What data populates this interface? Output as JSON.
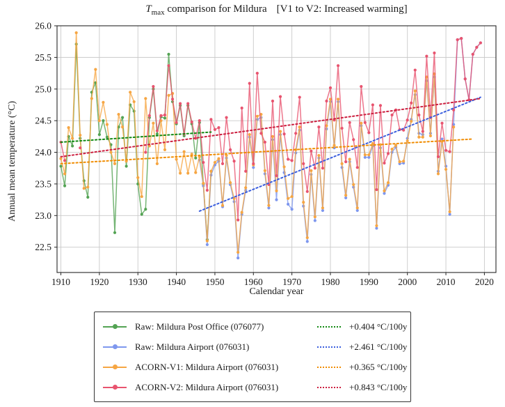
{
  "title": {
    "t": "T",
    "sub": "max",
    "rest": " comparison for Mildura",
    "bracket": "[V1 to V2: Increased warming]"
  },
  "chart_data": {
    "type": "line",
    "title": "T_max comparison for Mildura  [V1 to V2: Increased warming]",
    "xlabel": "Calendar year",
    "ylabel": "Annual mean temperature (°C)",
    "xlim": [
      1909,
      2023
    ],
    "ylim": [
      22.1,
      26.0
    ],
    "xticks": [
      1910,
      1920,
      1930,
      1940,
      1950,
      1960,
      1970,
      1980,
      1990,
      2000,
      2010,
      2020
    ],
    "yticks": [
      22.5,
      23.0,
      23.5,
      24.0,
      24.5,
      25.0,
      25.5,
      26.0
    ],
    "grid": true,
    "legend_position": "below",
    "series": [
      {
        "name": "Raw: Mildura Post Office (076077)",
        "color": "#53a353",
        "start": 1910,
        "values": [
          23.78,
          23.47,
          24.25,
          24.1,
          25.71,
          24.22,
          23.55,
          23.29,
          24.95,
          25.1,
          24.28,
          24.5,
          24.24,
          24.12,
          22.73,
          24.4,
          24.55,
          23.78,
          24.75,
          24.65,
          23.5,
          23.02,
          23.1,
          24.55,
          25.0,
          24.29,
          24.56,
          24.54,
          25.55,
          24.8,
          24.45,
          24.74,
          24.26,
          24.74,
          24.45,
          23.91,
          24.47,
          23.5,
          22.62,
          23.7
        ]
      },
      {
        "name": "Raw: Mildura Airport (076031)",
        "color": "#7e97ee",
        "start": 1946,
        "values": [
          23.88,
          23.47,
          22.54,
          23.64,
          23.8,
          23.86,
          23.14,
          23.91,
          23.49,
          23.22,
          22.33,
          23.02,
          23.4,
          24.24,
          23.76,
          24.52,
          24.55,
          23.66,
          23.12,
          24.2,
          23.25,
          24.28,
          23.68,
          23.18,
          23.1,
          23.99,
          24.35,
          23.15,
          22.59,
          23.65,
          22.92,
          23.91,
          23.08,
          24.37,
          24.8,
          24.07,
          24.8,
          23.76,
          23.28,
          23.85,
          23.45,
          23.08,
          24.42,
          23.92,
          23.92,
          24.1,
          22.8,
          24.07,
          23.35,
          23.48,
          24.0,
          24.08,
          23.82,
          23.83,
          24.22,
          24.52,
          24.91,
          24.3,
          24.28,
          25.13,
          24.3,
          25.19,
          23.7,
          24.21,
          23.78,
          23.02,
          24.44,
          25.78,
          25.8,
          25.16,
          24.83,
          25.55,
          25.66,
          25.73
        ]
      },
      {
        "name": "ACORN-V1: Mildura Airport (076031)",
        "color": "#f6a643",
        "start": 1910,
        "values": [
          23.9,
          23.66,
          24.39,
          24.22,
          25.89,
          24.27,
          23.43,
          23.45,
          24.85,
          25.31,
          24.5,
          24.79,
          24.44,
          24.0,
          23.82,
          24.6,
          24.4,
          23.86,
          24.95,
          24.8,
          23.6,
          23.3,
          24.85,
          24.1,
          24.46,
          23.82,
          24.5,
          24.04,
          24.9,
          24.93,
          23.89,
          23.67,
          24.01,
          23.67,
          23.97,
          23.68,
          23.93,
          23.51,
          22.6,
          23.7,
          23.84,
          23.9,
          23.16,
          23.95,
          23.52,
          23.27,
          22.42,
          23.05,
          23.44,
          24.28,
          23.8,
          24.57,
          24.6,
          23.71,
          23.16,
          24.25,
          23.39,
          24.33,
          23.77,
          23.27,
          23.3,
          24.04,
          24.4,
          23.21,
          22.65,
          23.71,
          22.98,
          23.95,
          23.12,
          24.42,
          24.84,
          24.11,
          24.84,
          23.82,
          23.32,
          23.89,
          23.49,
          23.12,
          24.46,
          23.96,
          23.96,
          24.14,
          22.84,
          24.12,
          23.39,
          23.52,
          24.05,
          24.11,
          23.85,
          23.86,
          24.18,
          24.49,
          24.97,
          24.24,
          24.24,
          25.19,
          24.26,
          25.24,
          23.66,
          24.17,
          23.73,
          23.06,
          24.4
        ]
      },
      {
        "name": "ACORN-V2: Mildura Airport (076031)",
        "color": "#e8546f",
        "start": 1910,
        "values": [
          24.16,
          23.87,
          null,
          null,
          null,
          24.07,
          null,
          null,
          null,
          null,
          null,
          null,
          null,
          null,
          null,
          null,
          null,
          null,
          null,
          null,
          null,
          null,
          24.0,
          24.58,
          25.04,
          24.34,
          24.58,
          24.59,
          25.37,
          24.84,
          24.47,
          24.77,
          24.29,
          24.77,
          24.48,
          24.22,
          24.5,
          23.84,
          23.4,
          24.52,
          24.36,
          24.39,
          23.82,
          24.55,
          24.04,
          23.86,
          22.93,
          24.7,
          23.7,
          25.09,
          23.82,
          25.25,
          24.3,
          24.16,
          23.49,
          24.81,
          23.63,
          24.88,
          24.29,
          23.89,
          23.87,
          24.3,
          24.87,
          23.82,
          23.38,
          24.02,
          23.75,
          24.4,
          23.75,
          24.81,
          25.02,
          24.51,
          25.37,
          24.38,
          23.85,
          24.47,
          24.2,
          23.76,
          25.04,
          24.47,
          24.31,
          24.75,
          23.41,
          24.74,
          23.83,
          23.98,
          24.59,
          24.67,
          24.36,
          24.35,
          24.51,
          24.78,
          25.3,
          24.59,
          24.33,
          25.52,
          24.55,
          25.57,
          23.93,
          24.46,
          24.03,
          24.01,
          24.67,
          25.78,
          25.8,
          25.16,
          24.83,
          25.55,
          25.66,
          25.73
        ]
      }
    ],
    "trends": [
      {
        "label": "+0.404 °C/100y",
        "color": "#118811",
        "x1": 1910,
        "y1": 24.16,
        "x2": 1949,
        "y2": 24.32
      },
      {
        "label": "+2.461 °C/100y",
        "color": "#3a5ede",
        "x1": 1946,
        "y1": 23.07,
        "x2": 2019,
        "y2": 24.87
      },
      {
        "label": "+0.365 °C/100y",
        "color": "#f08c00",
        "x1": 1910,
        "y1": 23.82,
        "x2": 2017,
        "y2": 24.21
      },
      {
        "label": "+0.843 °C/100y",
        "color": "#cc1f3f",
        "x1": 1910,
        "y1": 23.93,
        "x2": 2019,
        "y2": 24.85
      }
    ]
  }
}
